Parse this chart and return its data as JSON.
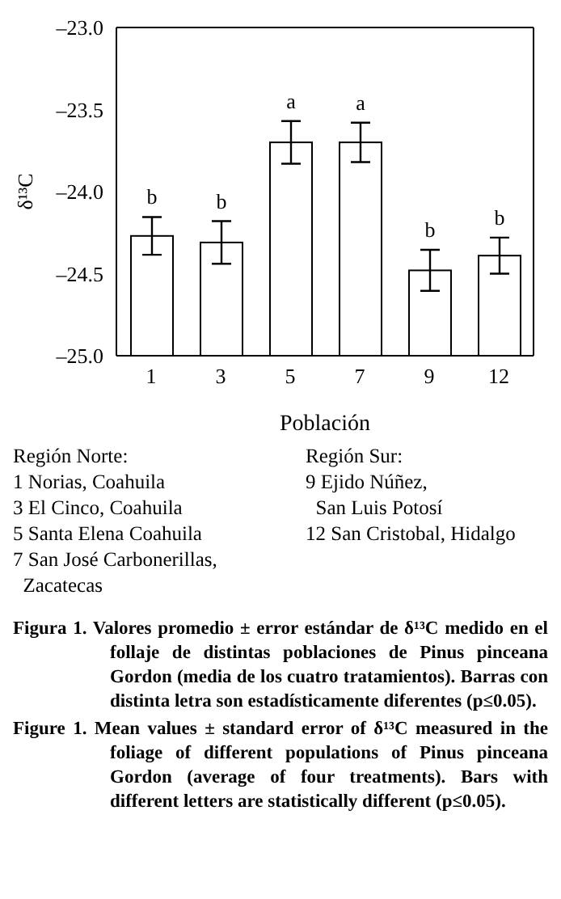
{
  "chart_data": {
    "type": "bar",
    "xlabel": "Población",
    "ylabel": "δ¹³C",
    "categories": [
      "1",
      "3",
      "5",
      "7",
      "9",
      "12"
    ],
    "base": [
      -25,
      -25,
      -25,
      -25,
      -25,
      -25
    ],
    "values": [
      0.73,
      0.69,
      1.3,
      1.3,
      0.52,
      0.61
    ],
    "errors": [
      0.115,
      0.13,
      0.13,
      0.12,
      0.125,
      0.11
    ],
    "color": "#ffffff",
    "ylim": [
      -25,
      -23
    ],
    "yticks": [
      {
        "value": -25,
        "label": "–25.0"
      },
      {
        "value": -24.5,
        "label": "–24.5"
      },
      {
        "value": -24,
        "label": "–24.0"
      },
      {
        "value": -23.5,
        "label": "–23.5"
      },
      {
        "value": -23,
        "label": "–23.0"
      }
    ],
    "grid": false,
    "legend": false,
    "annotations": [
      "b",
      "b",
      "a",
      "a",
      "b",
      "b",
      "Región Norte:\n1 Norias, Coahuila\n3 El Cinco, Coahuila\n5 Santa Elena Coahuila\n7 San José Carbonerillas,\n  Zacatecas",
      "Región Sur:\n9 Ejido Núñez,\n  San Luis Potosí\n12 San Cristobal, Hidalgo",
      "Figura 1. Valores promedio ± error estándar de δ¹³C medido en el follaje de distintas poblaciones de Pinus pinceana Gordon (media de los cuatro tratamientos). Barras con distinta letra son estadísticamente diferentes (p≤0.05).",
      "Figure 1. Mean values ± standard error of δ¹³C measured in the foliage of different populations of Pinus pinceana Gordon (average of four treatments). Bars with different letters are statistically different (p≤0.05)."
    ]
  }
}
